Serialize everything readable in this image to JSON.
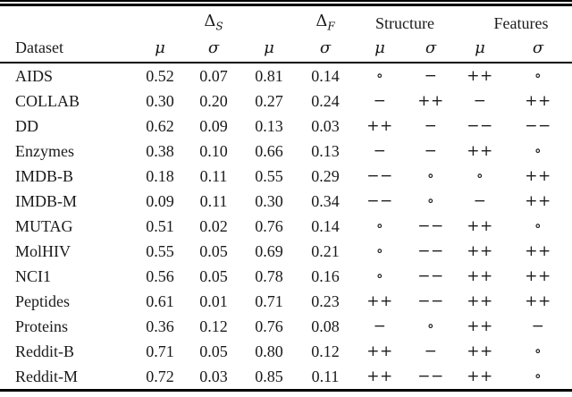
{
  "page": {
    "background": "#ffffff",
    "text_color": "#1a1a1a",
    "rule_color": "#000000"
  },
  "table": {
    "group_headers": {
      "delta_s": {
        "base": "Δ",
        "sub": "S"
      },
      "delta_f": {
        "base": "Δ",
        "sub": "F"
      },
      "structure": "Structure",
      "features": "Features"
    },
    "sub_headers": {
      "dataset": "Dataset",
      "mu": "μ",
      "sigma": "σ"
    },
    "rows": [
      {
        "dataset": "AIDS",
        "values": [
          "0.52",
          "0.07",
          "0.81",
          "0.14",
          "∘",
          "−",
          "++",
          "∘"
        ]
      },
      {
        "dataset": "COLLAB",
        "values": [
          "0.30",
          "0.20",
          "0.27",
          "0.24",
          "−",
          "++",
          "−",
          "++"
        ]
      },
      {
        "dataset": "DD",
        "values": [
          "0.62",
          "0.09",
          "0.13",
          "0.03",
          "++",
          "−",
          "−−",
          "−−"
        ]
      },
      {
        "dataset": "Enzymes",
        "values": [
          "0.38",
          "0.10",
          "0.66",
          "0.13",
          "−",
          "−",
          "++",
          "∘"
        ]
      },
      {
        "dataset": "IMDB-B",
        "values": [
          "0.18",
          "0.11",
          "0.55",
          "0.29",
          "−−",
          "∘",
          "∘",
          "++"
        ]
      },
      {
        "dataset": "IMDB-M",
        "values": [
          "0.09",
          "0.11",
          "0.30",
          "0.34",
          "−−",
          "∘",
          "−",
          "++"
        ]
      },
      {
        "dataset": "MUTAG",
        "values": [
          "0.51",
          "0.02",
          "0.76",
          "0.14",
          "∘",
          "−−",
          "++",
          "∘"
        ]
      },
      {
        "dataset": "MolHIV",
        "values": [
          "0.55",
          "0.05",
          "0.69",
          "0.21",
          "∘",
          "−−",
          "++",
          "++"
        ]
      },
      {
        "dataset": "NCI1",
        "values": [
          "0.56",
          "0.05",
          "0.78",
          "0.16",
          "∘",
          "−−",
          "++",
          "++"
        ]
      },
      {
        "dataset": "Peptides",
        "values": [
          "0.61",
          "0.01",
          "0.71",
          "0.23",
          "++",
          "−−",
          "++",
          "++"
        ]
      },
      {
        "dataset": "Proteins",
        "values": [
          "0.36",
          "0.12",
          "0.76",
          "0.08",
          "−",
          "∘",
          "++",
          "−"
        ]
      },
      {
        "dataset": "Reddit-B",
        "values": [
          "0.71",
          "0.05",
          "0.80",
          "0.12",
          "++",
          "−",
          "++",
          "∘"
        ]
      },
      {
        "dataset": "Reddit-M",
        "values": [
          "0.72",
          "0.03",
          "0.85",
          "0.11",
          "++",
          "−−",
          "++",
          "∘"
        ]
      }
    ]
  }
}
